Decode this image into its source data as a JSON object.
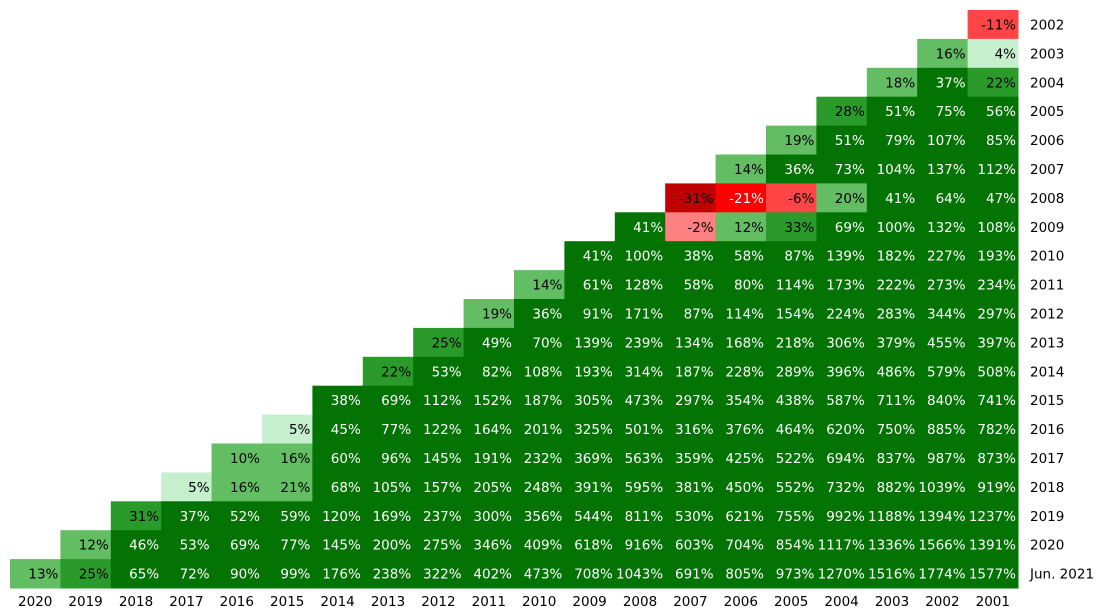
{
  "chart_data": {
    "type": "heatmap",
    "columns": [
      "2020",
      "2019",
      "2018",
      "2017",
      "2016",
      "2015",
      "2014",
      "2013",
      "2012",
      "2011",
      "2010",
      "2009",
      "2008",
      "2007",
      "2006",
      "2005",
      "2004",
      "2003",
      "2002",
      "2001"
    ],
    "rows": [
      {
        "name": "2002",
        "values": [
          -11
        ],
        "value_labels": [
          "-11%"
        ]
      },
      {
        "name": "2003",
        "values": [
          16,
          4
        ],
        "value_labels": [
          "16%",
          "4%"
        ]
      },
      {
        "name": "2004",
        "values": [
          18,
          37,
          22
        ],
        "value_labels": [
          "18%",
          "37%",
          "22%"
        ]
      },
      {
        "name": "2005",
        "values": [
          28,
          51,
          75,
          56
        ],
        "value_labels": [
          "28%",
          "51%",
          "75%",
          "56%"
        ]
      },
      {
        "name": "2006",
        "values": [
          19,
          51,
          79,
          107,
          85
        ],
        "value_labels": [
          "19%",
          "51%",
          "79%",
          "107%",
          "85%"
        ]
      },
      {
        "name": "2007",
        "values": [
          14,
          36,
          73,
          104,
          137,
          112
        ],
        "value_labels": [
          "14%",
          "36%",
          "73%",
          "104%",
          "137%",
          "112%"
        ]
      },
      {
        "name": "2008",
        "values": [
          -31,
          -21,
          -6,
          20,
          41,
          64,
          47
        ],
        "value_labels": [
          "-31%",
          "-21%",
          "-6%",
          "20%",
          "41%",
          "64%",
          "47%"
        ]
      },
      {
        "name": "2009",
        "values": [
          41,
          -2,
          12,
          33,
          69,
          100,
          132,
          108
        ],
        "value_labels": [
          "41%",
          "-2%",
          "12%",
          "33%",
          "69%",
          "100%",
          "132%",
          "108%"
        ]
      },
      {
        "name": "2010",
        "values": [
          41,
          100,
          38,
          58,
          87,
          139,
          182,
          227,
          193
        ],
        "value_labels": [
          "41%",
          "100%",
          "38%",
          "58%",
          "87%",
          "139%",
          "182%",
          "227%",
          "193%"
        ]
      },
      {
        "name": "2011",
        "values": [
          14,
          61,
          128,
          58,
          80,
          114,
          173,
          222,
          273,
          234
        ],
        "value_labels": [
          "14%",
          "61%",
          "128%",
          "58%",
          "80%",
          "114%",
          "173%",
          "222%",
          "273%",
          "234%"
        ]
      },
      {
        "name": "2012",
        "values": [
          19,
          36,
          91,
          171,
          87,
          114,
          154,
          224,
          283,
          344,
          297
        ],
        "value_labels": [
          "19%",
          "36%",
          "91%",
          "171%",
          "87%",
          "114%",
          "154%",
          "224%",
          "283%",
          "344%",
          "297%"
        ]
      },
      {
        "name": "2013",
        "values": [
          25,
          49,
          70,
          139,
          239,
          134,
          168,
          218,
          306,
          379,
          455,
          397
        ],
        "value_labels": [
          "25%",
          "49%",
          "70%",
          "139%",
          "239%",
          "134%",
          "168%",
          "218%",
          "306%",
          "379%",
          "455%",
          "397%"
        ]
      },
      {
        "name": "2014",
        "values": [
          22,
          53,
          82,
          108,
          193,
          314,
          187,
          228,
          289,
          396,
          486,
          579,
          508
        ],
        "value_labels": [
          "22%",
          "53%",
          "82%",
          "108%",
          "193%",
          "314%",
          "187%",
          "228%",
          "289%",
          "396%",
          "486%",
          "579%",
          "508%"
        ]
      },
      {
        "name": "2015",
        "values": [
          38,
          69,
          112,
          152,
          187,
          305,
          473,
          297,
          354,
          438,
          587,
          711,
          840,
          741
        ],
        "value_labels": [
          "38%",
          "69%",
          "112%",
          "152%",
          "187%",
          "305%",
          "473%",
          "297%",
          "354%",
          "438%",
          "587%",
          "711%",
          "840%",
          "741%"
        ]
      },
      {
        "name": "2016",
        "values": [
          5,
          45,
          77,
          122,
          164,
          201,
          325,
          501,
          316,
          376,
          464,
          620,
          750,
          885,
          782
        ],
        "value_labels": [
          "5%",
          "45%",
          "77%",
          "122%",
          "164%",
          "201%",
          "325%",
          "501%",
          "316%",
          "376%",
          "464%",
          "620%",
          "750%",
          "885%",
          "782%"
        ]
      },
      {
        "name": "2017",
        "values": [
          10,
          16,
          60,
          96,
          145,
          191,
          232,
          369,
          563,
          359,
          425,
          522,
          694,
          837,
          987,
          873
        ],
        "value_labels": [
          "10%",
          "16%",
          "60%",
          "96%",
          "145%",
          "191%",
          "232%",
          "369%",
          "563%",
          "359%",
          "425%",
          "522%",
          "694%",
          "837%",
          "987%",
          "873%"
        ]
      },
      {
        "name": "2018",
        "values": [
          5,
          16,
          21,
          68,
          105,
          157,
          205,
          248,
          391,
          595,
          381,
          450,
          552,
          732,
          882,
          1039,
          919
        ],
        "value_labels": [
          "5%",
          "16%",
          "21%",
          "68%",
          "105%",
          "157%",
          "205%",
          "248%",
          "391%",
          "595%",
          "381%",
          "450%",
          "552%",
          "732%",
          "882%",
          "1039%",
          "919%"
        ]
      },
      {
        "name": "2019",
        "values": [
          31,
          37,
          52,
          59,
          120,
          169,
          237,
          300,
          356,
          544,
          811,
          530,
          621,
          755,
          992,
          1188,
          1394,
          1237
        ],
        "value_labels": [
          "31%",
          "37%",
          "52%",
          "59%",
          "120%",
          "169%",
          "237%",
          "300%",
          "356%",
          "544%",
          "811%",
          "530%",
          "621%",
          "755%",
          "992%",
          "1188%",
          "1394%",
          "1237%"
        ]
      },
      {
        "name": "2020",
        "values": [
          12,
          46,
          53,
          69,
          77,
          145,
          200,
          275,
          346,
          409,
          618,
          916,
          603,
          704,
          854,
          1117,
          1336,
          1566,
          1391
        ],
        "value_labels": [
          "12%",
          "46%",
          "53%",
          "69%",
          "77%",
          "145%",
          "200%",
          "275%",
          "346%",
          "409%",
          "618%",
          "916%",
          "603%",
          "704%",
          "854%",
          "1117%",
          "1336%",
          "1566%",
          "1391%"
        ]
      },
      {
        "name": "Jun. 2021",
        "values": [
          13,
          25,
          65,
          72,
          90,
          99,
          176,
          238,
          322,
          402,
          473,
          708,
          1043,
          691,
          805,
          973,
          1270,
          1516,
          1774,
          1577
        ],
        "value_labels": [
          "13%",
          "25%",
          "65%",
          "72%",
          "90%",
          "99%",
          "176%",
          "238%",
          "322%",
          "402%",
          "473%",
          "708%",
          "1043%",
          "691%",
          "805%",
          "973%",
          "1270%",
          "1516%",
          "1774%",
          "1577%"
        ]
      }
    ],
    "color_scale": [
      {
        "from": -100,
        "fill": "#c00000",
        "text": "#000000"
      },
      {
        "from": -25,
        "fill": "#ff0000",
        "text": "#ffffff"
      },
      {
        "from": -15,
        "fill": "#ff4545",
        "text": "#000000"
      },
      {
        "from": -4,
        "fill": "#ff8080",
        "text": "#000000"
      },
      {
        "from": 0,
        "fill": "#c6efce",
        "text": "#000000"
      },
      {
        "from": 8,
        "fill": "#63be63",
        "text": "#000000"
      },
      {
        "from": 22,
        "fill": "#2a9a2a",
        "text": "#000000"
      },
      {
        "from": 36,
        "fill": "#037303",
        "text": "#ffffff"
      }
    ]
  }
}
